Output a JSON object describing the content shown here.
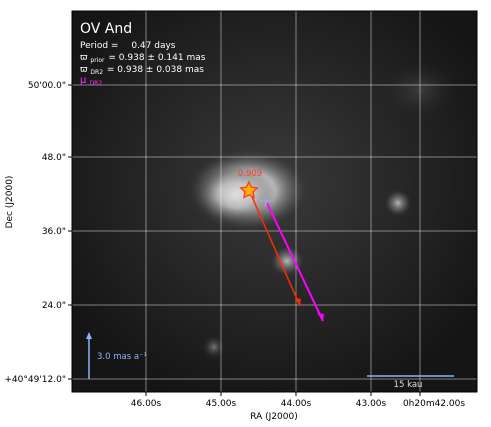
{
  "chart_data": {
    "type": "scatter",
    "title": "OV And",
    "annotations": {
      "period_label": "Period =",
      "period_value": "0.47 days",
      "parallax_prior": "= 0.938 ± 0.141 mas",
      "parallax_dr2": "= 0.938 ± 0.038 mas",
      "pm_symbol": "μ",
      "pm_subscript": "DR2",
      "omega": "ϖ",
      "prior_subscript": "prior",
      "dr2_subscript": "DR2",
      "star_score": "0.909",
      "pm_scale_label": "3.0 mas a⁻¹",
      "distance_scale_label": "15 kau"
    },
    "xlabel": "RA (J2000)",
    "ylabel": "Dec (J2000)",
    "x_ticks": [
      "46.00s",
      "45.00s",
      "44.00s",
      "43.00s",
      "0h20m42.00s"
    ],
    "y_ticks": [
      "50'00.0\"",
      "48.0\"",
      "36.0\"",
      "24.0\"",
      "+40°49'12.0\""
    ],
    "grid": true,
    "background": "grayscale-image",
    "colors": {
      "star": "#ff3b1f",
      "pm_dr2_arrow": "#ff00ff",
      "pm_other_arrow": "#ff2a00",
      "scale_bar": "#8ab4ff",
      "cross": "#9aa8e0",
      "grid": "#ffffff",
      "text": "#ffffff",
      "pm_label": "#ff33ff",
      "score_text": "#ff3b1f"
    },
    "markers": {
      "star_icon": "star-icon",
      "cross_icon": "cross-icon"
    }
  }
}
